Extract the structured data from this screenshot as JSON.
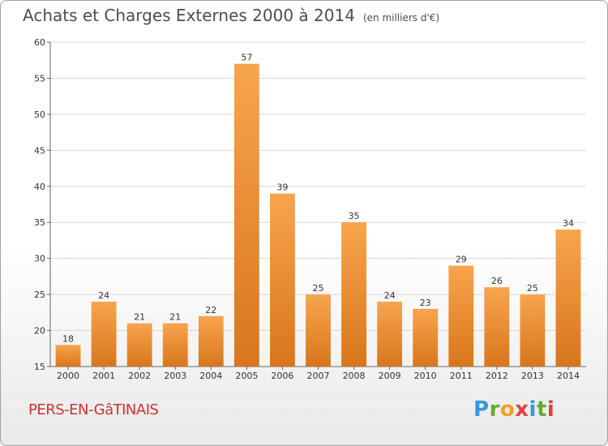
{
  "header": {
    "title": "Achats et Charges Externes 2000 à 2014",
    "subtitle": "(en milliers d'€)"
  },
  "footer": {
    "location": "PERS-EN-GâTINAIS",
    "logo": "Proxiti"
  },
  "colors": {
    "bar_light": "#f7a54d",
    "bar_dark": "#d8761c",
    "location_text": "#cc3333"
  },
  "chart_data": {
    "type": "bar",
    "categories": [
      "2000",
      "2001",
      "2002",
      "2003",
      "2004",
      "2005",
      "2006",
      "2007",
      "2008",
      "2009",
      "2010",
      "2011",
      "2012",
      "2013",
      "2014"
    ],
    "values": [
      18,
      24,
      21,
      21,
      22,
      57,
      39,
      25,
      35,
      24,
      23,
      29,
      26,
      25,
      34
    ],
    "title": "Achats et Charges Externes 2000 à 2014",
    "subtitle": "(en milliers d'€)",
    "xlabel": "",
    "ylabel": "",
    "ylim": [
      15,
      60
    ],
    "yticks": [
      15,
      20,
      25,
      30,
      35,
      40,
      45,
      50,
      55,
      60
    ],
    "grid": true,
    "data_labels": true
  }
}
